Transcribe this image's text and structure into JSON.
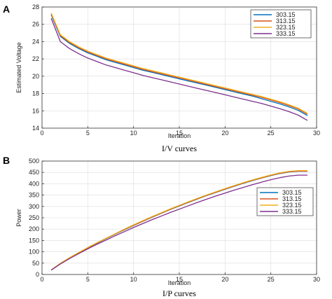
{
  "colors": {
    "303.15": "#0072BD",
    "313.15": "#D95319",
    "323.15": "#EDB120",
    "333.15": "#7E2F8E"
  },
  "chart_data": [
    {
      "panel": "A",
      "type": "line",
      "caption": "I/V curves",
      "xlabel": "Iteration",
      "ylabel": "Estimated Voltage",
      "xlim": [
        0,
        30
      ],
      "ylim": [
        14,
        28
      ],
      "xticks": [
        0,
        5,
        10,
        15,
        20,
        25,
        30
      ],
      "yticks": [
        14,
        16,
        18,
        20,
        22,
        24,
        26,
        28
      ],
      "grid": true,
      "legend_position": "top-right",
      "x": [
        1,
        2,
        3,
        4,
        5,
        6,
        7,
        8,
        9,
        10,
        11,
        12,
        13,
        14,
        15,
        16,
        17,
        18,
        19,
        20,
        21,
        22,
        23,
        24,
        25,
        26,
        27,
        28,
        29
      ],
      "series": [
        {
          "name": "303.15",
          "color": "#0072BD",
          "values": [
            27.1,
            24.6,
            23.8,
            23.2,
            22.7,
            22.3,
            21.9,
            21.6,
            21.3,
            21.0,
            20.7,
            20.45,
            20.2,
            19.95,
            19.7,
            19.45,
            19.2,
            18.95,
            18.7,
            18.45,
            18.2,
            17.95,
            17.7,
            17.4,
            17.1,
            16.8,
            16.45,
            16.05,
            15.45
          ]
        },
        {
          "name": "313.15",
          "color": "#D95319",
          "values": [
            27.2,
            24.7,
            23.9,
            23.3,
            22.8,
            22.4,
            22.0,
            21.7,
            21.4,
            21.1,
            20.8,
            20.55,
            20.3,
            20.05,
            19.8,
            19.55,
            19.3,
            19.05,
            18.8,
            18.55,
            18.3,
            18.05,
            17.8,
            17.55,
            17.25,
            16.95,
            16.6,
            16.2,
            15.6
          ]
        },
        {
          "name": "323.15",
          "color": "#EDB120",
          "values": [
            27.3,
            24.8,
            24.0,
            23.4,
            22.9,
            22.5,
            22.1,
            21.8,
            21.5,
            21.2,
            20.9,
            20.65,
            20.4,
            20.15,
            19.9,
            19.65,
            19.4,
            19.15,
            18.9,
            18.65,
            18.4,
            18.15,
            17.9,
            17.65,
            17.35,
            17.05,
            16.7,
            16.3,
            15.7
          ]
        },
        {
          "name": "333.15",
          "color": "#7E2F8E",
          "values": [
            26.7,
            24.0,
            23.2,
            22.6,
            22.1,
            21.7,
            21.3,
            21.0,
            20.7,
            20.4,
            20.1,
            19.85,
            19.6,
            19.35,
            19.1,
            18.85,
            18.6,
            18.35,
            18.1,
            17.85,
            17.6,
            17.35,
            17.1,
            16.85,
            16.55,
            16.25,
            15.9,
            15.5,
            14.9
          ]
        }
      ]
    },
    {
      "panel": "B",
      "type": "line",
      "caption": "I/P curves",
      "xlabel": "Iteration",
      "ylabel": "Power",
      "xlim": [
        0,
        30
      ],
      "ylim": [
        0,
        500
      ],
      "xticks": [
        0,
        5,
        10,
        15,
        20,
        25,
        30
      ],
      "yticks": [
        0,
        50,
        100,
        150,
        200,
        250,
        300,
        350,
        400,
        450,
        500
      ],
      "grid": true,
      "legend_position": "right",
      "x": [
        1,
        2,
        3,
        4,
        5,
        6,
        7,
        8,
        9,
        10,
        11,
        12,
        13,
        14,
        15,
        16,
        17,
        18,
        19,
        20,
        21,
        22,
        23,
        24,
        25,
        26,
        27,
        28,
        29
      ],
      "series": [
        {
          "name": "303.15",
          "color": "#0072BD",
          "values": [
            20,
            48,
            72,
            95,
            117,
            138,
            158,
            178,
            197,
            216,
            234,
            252,
            269,
            286,
            302,
            318,
            333,
            348,
            362,
            376,
            389,
            402,
            414,
            425,
            436,
            445,
            452,
            455,
            455
          ]
        },
        {
          "name": "313.15",
          "color": "#D95319",
          "values": [
            20,
            49,
            73,
            96,
            118,
            139,
            159,
            179,
            198,
            217,
            235,
            253,
            270,
            287,
            303,
            319,
            334,
            349,
            363,
            377,
            390,
            403,
            415,
            426,
            437,
            446,
            453,
            456,
            456
          ]
        },
        {
          "name": "323.15",
          "color": "#EDB120",
          "values": [
            20,
            49,
            74,
            97,
            119,
            140,
            160,
            180,
            200,
            219,
            237,
            255,
            272,
            289,
            305,
            321,
            336,
            351,
            365,
            379,
            392,
            405,
            417,
            428,
            439,
            448,
            455,
            458,
            458
          ]
        },
        {
          "name": "333.15",
          "color": "#7E2F8E",
          "values": [
            19,
            46,
            70,
            92,
            113,
            133,
            152,
            171,
            189,
            207,
            224,
            241,
            257,
            273,
            288,
            303,
            318,
            332,
            346,
            359,
            372,
            384,
            396,
            407,
            418,
            427,
            434,
            438,
            438
          ]
        }
      ]
    }
  ]
}
